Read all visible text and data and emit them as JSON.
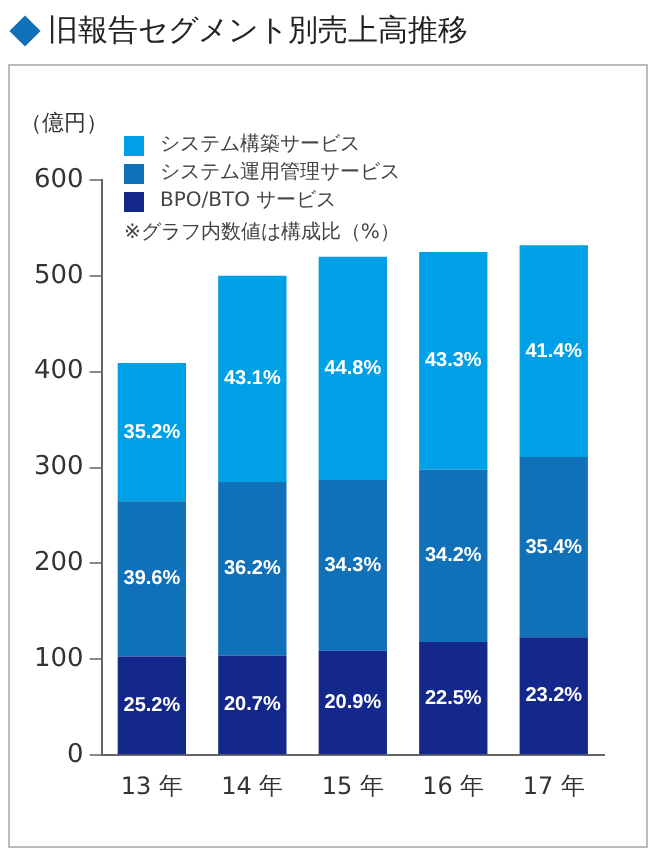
{
  "chart_data": {
    "type": "bar",
    "title": "旧報告セグメント別売上高推移",
    "ylabel": "（億円）",
    "categories": [
      "13 年",
      "14 年",
      "15 年",
      "16 年",
      "17 年"
    ],
    "stacked": true,
    "series": [
      {
        "name": "BPO/BTO サービス",
        "color": "#13288a",
        "values": [
          103,
          104,
          109,
          118,
          123
        ]
      },
      {
        "name": "システム運用管理サービス",
        "color": "#1070b8",
        "values": [
          162,
          181,
          178,
          180,
          188
        ]
      },
      {
        "name": "システム構築サービス",
        "color": "#00a0e6",
        "values": [
          144,
          215,
          233,
          227,
          221
        ]
      }
    ],
    "ylim": [
      0,
      600
    ],
    "yticks": [
      0,
      100,
      200,
      300,
      400,
      500,
      600
    ],
    "grid": false,
    "legend": "top left",
    "annotations": [
      "※グラフ内数値は構成比（%）",
      "25.2%",
      "20.7%",
      "20.9%",
      "22.5%",
      "23.2%",
      "39.6%",
      "36.2%",
      "34.3%",
      "34.2%",
      "35.4%",
      "35.2%",
      "43.1%",
      "44.8%",
      "43.3%",
      "41.4%"
    ]
  }
}
